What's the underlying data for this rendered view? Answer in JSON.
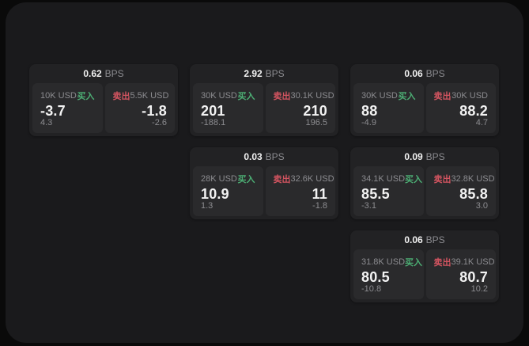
{
  "labels": {
    "bps_unit": "BPS",
    "buy": "买入",
    "sell": "卖出"
  },
  "colors": {
    "background": "#0a0a0a",
    "panel": "#1a1a1c",
    "card": "#222224",
    "tile": "#2a2a2c",
    "text_primary": "#f2f2f2",
    "text_secondary": "#8c8c90",
    "buy_green": "#4cae74",
    "sell_red": "#d25460"
  },
  "cards": [
    {
      "row": 1,
      "col": 1,
      "bps": "0.62",
      "buy": {
        "notional": "10K USD",
        "price": "-3.7",
        "delta": "4.3"
      },
      "sell": {
        "notional": "5.5K USD",
        "price": "-1.8",
        "delta": "-2.6"
      }
    },
    {
      "row": 1,
      "col": 2,
      "bps": "2.92",
      "buy": {
        "notional": "30K USD",
        "price": "201",
        "delta": "-188.1"
      },
      "sell": {
        "notional": "30.1K USD",
        "price": "210",
        "delta": "196.5"
      }
    },
    {
      "row": 1,
      "col": 3,
      "bps": "0.06",
      "buy": {
        "notional": "30K USD",
        "price": "88",
        "delta": "-4.9"
      },
      "sell": {
        "notional": "30K USD",
        "price": "88.2",
        "delta": "4.7"
      }
    },
    {
      "row": 2,
      "col": 2,
      "bps": "0.03",
      "buy": {
        "notional": "28K USD",
        "price": "10.9",
        "delta": "1.3"
      },
      "sell": {
        "notional": "32.6K USD",
        "price": "11",
        "delta": "-1.8"
      }
    },
    {
      "row": 2,
      "col": 3,
      "bps": "0.09",
      "buy": {
        "notional": "34.1K USD",
        "price": "85.5",
        "delta": "-3.1"
      },
      "sell": {
        "notional": "32.8K USD",
        "price": "85.8",
        "delta": "3.0"
      }
    },
    {
      "row": 3,
      "col": 3,
      "bps": "0.06",
      "buy": {
        "notional": "31.8K USD",
        "price": "80.5",
        "delta": "-10.8"
      },
      "sell": {
        "notional": "39.1K USD",
        "price": "80.7",
        "delta": "10.2"
      }
    }
  ]
}
